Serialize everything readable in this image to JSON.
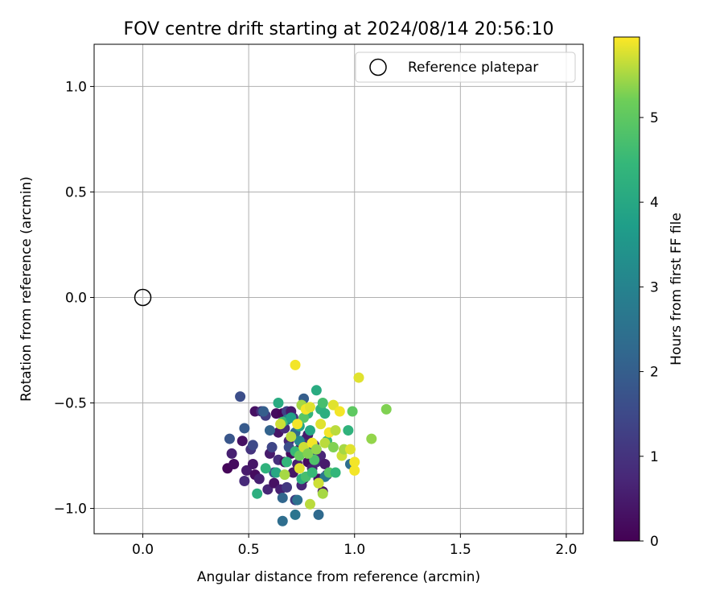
{
  "chart_data": {
    "type": "scatter",
    "title": "FOV centre drift starting at 2024/08/14 20:56:10",
    "xlabel": "Angular distance from reference (arcmin)",
    "ylabel": "Rotation from reference (arcmin)",
    "xlim": [
      -0.23,
      2.08
    ],
    "ylim": [
      -1.12,
      1.2
    ],
    "xticks": [
      0.0,
      0.5,
      1.0,
      1.5,
      2.0
    ],
    "xtick_labels": [
      "0.0",
      "0.5",
      "1.0",
      "1.5",
      "2.0"
    ],
    "yticks": [
      -1.0,
      -0.5,
      0.0,
      0.5,
      1.0
    ],
    "ytick_labels": [
      "−1.0",
      "−0.5",
      "0.0",
      "0.5",
      "1.0"
    ],
    "grid": true,
    "legend": {
      "placement": "upper-right",
      "entries": [
        "Reference platepar"
      ]
    },
    "reference_point": {
      "x": 0.0,
      "y": 0.0,
      "marker": "open-circle"
    },
    "colorbar": {
      "label": "Hours from first FF file",
      "colormap": "viridis",
      "range": [
        0,
        5.95
      ],
      "ticks": [
        0,
        1,
        2,
        3,
        4,
        5
      ],
      "tick_labels": [
        "0",
        "1",
        "2",
        "3",
        "4",
        "5"
      ]
    },
    "points": [
      {
        "x": 0.4,
        "y": -0.81,
        "c": 0.1
      },
      {
        "x": 0.42,
        "y": -0.74,
        "c": 0.6
      },
      {
        "x": 0.43,
        "y": -0.79,
        "c": 0.2
      },
      {
        "x": 0.47,
        "y": -0.68,
        "c": 0.3
      },
      {
        "x": 0.49,
        "y": -0.82,
        "c": 0.5
      },
      {
        "x": 0.48,
        "y": -0.87,
        "c": 0.8
      },
      {
        "x": 0.51,
        "y": -0.72,
        "c": 1.0
      },
      {
        "x": 0.52,
        "y": -0.79,
        "c": 0.4
      },
      {
        "x": 0.53,
        "y": -0.84,
        "c": 0.2
      },
      {
        "x": 0.53,
        "y": -0.54,
        "c": 0.3
      },
      {
        "x": 0.55,
        "y": -0.86,
        "c": 0.6
      },
      {
        "x": 0.56,
        "y": -0.54,
        "c": 0.9
      },
      {
        "x": 0.58,
        "y": -0.56,
        "c": 1.2
      },
      {
        "x": 0.59,
        "y": -0.91,
        "c": 0.7
      },
      {
        "x": 0.6,
        "y": -0.74,
        "c": 0.5
      },
      {
        "x": 0.61,
        "y": -0.71,
        "c": 1.4
      },
      {
        "x": 0.62,
        "y": -0.88,
        "c": 0.3
      },
      {
        "x": 0.63,
        "y": -0.55,
        "c": 0.2
      },
      {
        "x": 0.64,
        "y": -0.64,
        "c": 0.4
      },
      {
        "x": 0.64,
        "y": -0.77,
        "c": 0.9
      },
      {
        "x": 0.65,
        "y": -0.91,
        "c": 0.6
      },
      {
        "x": 0.66,
        "y": -0.55,
        "c": 0.1
      },
      {
        "x": 0.67,
        "y": -0.62,
        "c": 0.8
      },
      {
        "x": 0.67,
        "y": -0.78,
        "c": 0.3
      },
      {
        "x": 0.68,
        "y": -0.9,
        "c": 1.1
      },
      {
        "x": 0.68,
        "y": -0.54,
        "c": 1.3
      },
      {
        "x": 0.69,
        "y": -0.68,
        "c": 0.7
      },
      {
        "x": 0.7,
        "y": -0.74,
        "c": 0.2
      },
      {
        "x": 0.7,
        "y": -0.54,
        "c": 0.5
      },
      {
        "x": 0.71,
        "y": -0.57,
        "c": 1.0
      },
      {
        "x": 0.71,
        "y": -0.83,
        "c": 0.4
      },
      {
        "x": 0.72,
        "y": -0.96,
        "c": 1.1
      },
      {
        "x": 0.73,
        "y": -0.79,
        "c": 0.6
      },
      {
        "x": 0.74,
        "y": -0.72,
        "c": 0.3
      },
      {
        "x": 0.75,
        "y": -0.89,
        "c": 0.7
      },
      {
        "x": 0.76,
        "y": -0.86,
        "c": 0.4
      },
      {
        "x": 0.77,
        "y": -0.67,
        "c": 0.9
      },
      {
        "x": 0.78,
        "y": -0.65,
        "c": 0.5
      },
      {
        "x": 0.78,
        "y": -0.78,
        "c": 0.2
      },
      {
        "x": 0.8,
        "y": -0.81,
        "c": 0.6
      },
      {
        "x": 0.81,
        "y": -0.7,
        "c": 1.0
      },
      {
        "x": 0.82,
        "y": -0.78,
        "c": 0.8
      },
      {
        "x": 0.83,
        "y": -0.86,
        "c": 0.3
      },
      {
        "x": 0.84,
        "y": -0.75,
        "c": 0.7
      },
      {
        "x": 0.85,
        "y": -0.92,
        "c": 0.4
      },
      {
        "x": 0.86,
        "y": -0.79,
        "c": 0.5
      },
      {
        "x": 0.87,
        "y": -0.84,
        "c": 0.9
      },
      {
        "x": 0.46,
        "y": -0.47,
        "c": 1.6
      },
      {
        "x": 0.41,
        "y": -0.67,
        "c": 1.8
      },
      {
        "x": 0.48,
        "y": -0.62,
        "c": 1.9
      },
      {
        "x": 0.52,
        "y": -0.7,
        "c": 1.5
      },
      {
        "x": 0.57,
        "y": -0.54,
        "c": 2.0
      },
      {
        "x": 0.6,
        "y": -0.63,
        "c": 2.1
      },
      {
        "x": 0.62,
        "y": -0.83,
        "c": 1.7
      },
      {
        "x": 0.66,
        "y": -0.95,
        "c": 2.2
      },
      {
        "x": 0.66,
        "y": -1.06,
        "c": 2.4
      },
      {
        "x": 0.69,
        "y": -0.71,
        "c": 1.6
      },
      {
        "x": 0.72,
        "y": -0.64,
        "c": 2.3
      },
      {
        "x": 0.73,
        "y": -0.96,
        "c": 2.5
      },
      {
        "x": 0.72,
        "y": -1.03,
        "c": 2.6
      },
      {
        "x": 0.76,
        "y": -0.48,
        "c": 2.0
      },
      {
        "x": 0.8,
        "y": -0.73,
        "c": 1.8
      },
      {
        "x": 0.83,
        "y": -1.03,
        "c": 2.3
      },
      {
        "x": 0.86,
        "y": -0.85,
        "c": 2.7
      },
      {
        "x": 0.98,
        "y": -0.79,
        "c": 2.4
      },
      {
        "x": 0.68,
        "y": -0.58,
        "c": 2.9
      },
      {
        "x": 0.74,
        "y": -0.68,
        "c": 3.1
      },
      {
        "x": 0.64,
        "y": -0.5,
        "c": 4.1
      },
      {
        "x": 0.54,
        "y": -0.93,
        "c": 4.2
      },
      {
        "x": 0.58,
        "y": -0.81,
        "c": 4.3
      },
      {
        "x": 0.63,
        "y": -0.83,
        "c": 4.0
      },
      {
        "x": 0.66,
        "y": -0.59,
        "c": 4.6
      },
      {
        "x": 0.68,
        "y": -0.78,
        "c": 4.4
      },
      {
        "x": 0.7,
        "y": -0.57,
        "c": 3.8
      },
      {
        "x": 0.72,
        "y": -0.73,
        "c": 4.5
      },
      {
        "x": 0.74,
        "y": -0.61,
        "c": 3.9
      },
      {
        "x": 0.75,
        "y": -0.86,
        "c": 4.2
      },
      {
        "x": 0.77,
        "y": -0.85,
        "c": 4.7
      },
      {
        "x": 0.78,
        "y": -0.55,
        "c": 4.4
      },
      {
        "x": 0.79,
        "y": -0.63,
        "c": 4.0
      },
      {
        "x": 0.8,
        "y": -0.83,
        "c": 4.5
      },
      {
        "x": 0.81,
        "y": -0.77,
        "c": 4.8
      },
      {
        "x": 0.82,
        "y": -0.44,
        "c": 4.1
      },
      {
        "x": 0.83,
        "y": -0.88,
        "c": 4.6
      },
      {
        "x": 0.84,
        "y": -0.53,
        "c": 4.3
      },
      {
        "x": 0.85,
        "y": -0.5,
        "c": 4.7
      },
      {
        "x": 0.86,
        "y": -0.55,
        "c": 4.2
      },
      {
        "x": 0.87,
        "y": -0.68,
        "c": 4.5
      },
      {
        "x": 0.88,
        "y": -0.83,
        "c": 4.9
      },
      {
        "x": 0.91,
        "y": -0.83,
        "c": 4.4
      },
      {
        "x": 0.97,
        "y": -0.63,
        "c": 4.3
      },
      {
        "x": 0.99,
        "y": -0.54,
        "c": 5.0
      },
      {
        "x": 0.74,
        "y": -0.75,
        "c": 5.1
      },
      {
        "x": 0.76,
        "y": -0.57,
        "c": 4.9
      },
      {
        "x": 0.8,
        "y": -0.69,
        "c": 4.6
      },
      {
        "x": 0.72,
        "y": -0.32,
        "c": 5.9
      },
      {
        "x": 1.02,
        "y": -0.38,
        "c": 5.8
      },
      {
        "x": 1.15,
        "y": -0.53,
        "c": 5.3
      },
      {
        "x": 1.08,
        "y": -0.67,
        "c": 5.4
      },
      {
        "x": 0.65,
        "y": -0.6,
        "c": 5.7
      },
      {
        "x": 0.67,
        "y": -0.84,
        "c": 5.5
      },
      {
        "x": 0.7,
        "y": -0.66,
        "c": 5.6
      },
      {
        "x": 0.73,
        "y": -0.6,
        "c": 5.9
      },
      {
        "x": 0.74,
        "y": -0.81,
        "c": 5.8
      },
      {
        "x": 0.75,
        "y": -0.51,
        "c": 5.5
      },
      {
        "x": 0.76,
        "y": -0.71,
        "c": 5.7
      },
      {
        "x": 0.77,
        "y": -0.53,
        "c": 5.9
      },
      {
        "x": 0.78,
        "y": -0.74,
        "c": 5.3
      },
      {
        "x": 0.79,
        "y": -0.52,
        "c": 5.8
      },
      {
        "x": 0.79,
        "y": -0.98,
        "c": 5.6
      },
      {
        "x": 0.8,
        "y": -0.69,
        "c": 5.9
      },
      {
        "x": 0.82,
        "y": -0.72,
        "c": 5.4
      },
      {
        "x": 0.83,
        "y": -0.88,
        "c": 5.7
      },
      {
        "x": 0.84,
        "y": -0.6,
        "c": 5.8
      },
      {
        "x": 0.85,
        "y": -0.93,
        "c": 5.5
      },
      {
        "x": 0.86,
        "y": -0.69,
        "c": 5.6
      },
      {
        "x": 0.88,
        "y": -0.64,
        "c": 5.9
      },
      {
        "x": 0.9,
        "y": -0.51,
        "c": 5.8
      },
      {
        "x": 0.9,
        "y": -0.71,
        "c": 5.3
      },
      {
        "x": 0.91,
        "y": -0.63,
        "c": 5.6
      },
      {
        "x": 0.93,
        "y": -0.54,
        "c": 5.9
      },
      {
        "x": 0.94,
        "y": -0.75,
        "c": 5.7
      },
      {
        "x": 0.95,
        "y": -0.72,
        "c": 5.5
      },
      {
        "x": 0.98,
        "y": -0.72,
        "c": 5.8
      },
      {
        "x": 1.0,
        "y": -0.78,
        "c": 5.9
      },
      {
        "x": 1.0,
        "y": -0.82,
        "c": 5.9
      }
    ]
  }
}
